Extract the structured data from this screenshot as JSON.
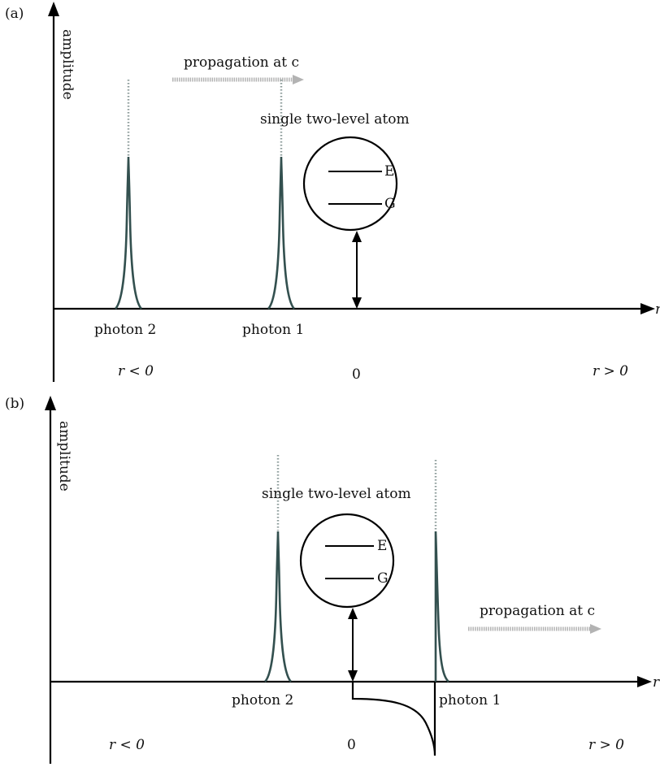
{
  "panel_a": {
    "tag": "(a)",
    "y_label": "amplitude",
    "x_label": "r",
    "propagation": "propagation at c",
    "atom_label": "single two-level atom",
    "level_e": "E",
    "level_g": "G",
    "photon_2": "photon 2",
    "photon_1": "photon 1",
    "region_left": "r < 0",
    "region_zero": "0",
    "region_right": "r > 0"
  },
  "panel_b": {
    "tag": "(b)",
    "y_label": "amplitude",
    "x_label": "r",
    "propagation": "propagation at c",
    "atom_label": "single two-level atom",
    "level_e": "E",
    "level_g": "G",
    "photon_2": "photon 2",
    "photon_1": "photon 1",
    "region_left": "r < 0",
    "region_zero": "0",
    "region_right": "r > 0"
  },
  "colors": {
    "photon": "#33504f",
    "arrow": "#b3b3b3"
  }
}
